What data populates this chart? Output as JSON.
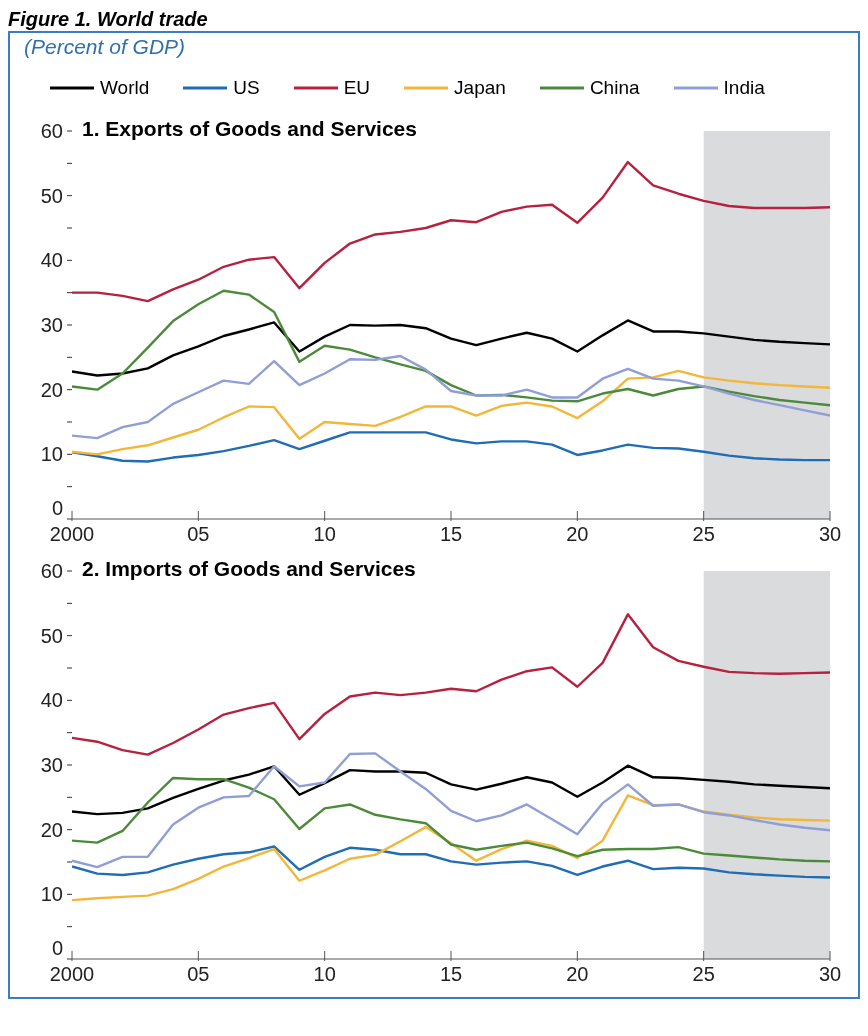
{
  "chart_data": [
    {
      "type": "line",
      "title": "1. Exports of Goods and Services",
      "ylabel": "(Percent of GDP)",
      "annotations": [
        "Figure 1. World trade"
      ],
      "x": [
        2000,
        2001,
        2002,
        2003,
        2004,
        2005,
        2006,
        2007,
        2008,
        2009,
        2010,
        2011,
        2012,
        2013,
        2014,
        2015,
        2016,
        2017,
        2018,
        2019,
        2020,
        2021,
        2022,
        2023,
        2024,
        2025,
        2026,
        2027,
        2028,
        2029,
        2030
      ],
      "series": [
        {
          "name": "World",
          "color": "#000000",
          "values": [
            22.8,
            22.2,
            22.5,
            23.3,
            25.3,
            26.7,
            28.3,
            29.3,
            30.4,
            25.9,
            28.2,
            30.0,
            29.9,
            30.0,
            29.5,
            27.9,
            26.9,
            27.9,
            28.8,
            27.9,
            25.9,
            28.4,
            30.7,
            29.0,
            29.0,
            28.7,
            28.2,
            27.7,
            27.4,
            27.2,
            27.0
          ]
        },
        {
          "name": "US",
          "color": "#1f6db5",
          "values": [
            10.3,
            9.7,
            9.0,
            8.9,
            9.5,
            9.9,
            10.5,
            11.3,
            12.2,
            10.8,
            12.1,
            13.4,
            13.4,
            13.4,
            13.4,
            12.3,
            11.7,
            12.0,
            12.0,
            11.5,
            9.9,
            10.6,
            11.5,
            11.0,
            10.9,
            10.4,
            9.8,
            9.4,
            9.2,
            9.1,
            9.1
          ]
        },
        {
          "name": "EU",
          "color": "#b5213f",
          "values": [
            35.0,
            35.0,
            34.5,
            33.7,
            35.5,
            37.0,
            39.0,
            40.1,
            40.5,
            35.7,
            39.6,
            42.6,
            44.0,
            44.4,
            45.0,
            46.2,
            45.9,
            47.5,
            48.3,
            48.6,
            45.8,
            49.7,
            55.2,
            51.6,
            50.3,
            49.2,
            48.4,
            48.1,
            48.1,
            48.1,
            48.2
          ]
        },
        {
          "name": "Japan",
          "color": "#f2b63a",
          "values": [
            10.4,
            10.0,
            10.8,
            11.4,
            12.6,
            13.8,
            15.7,
            17.4,
            17.3,
            12.4,
            15.0,
            14.7,
            14.4,
            15.8,
            17.4,
            17.4,
            16.0,
            17.5,
            18.0,
            17.4,
            15.6,
            18.2,
            21.7,
            21.9,
            22.9,
            21.9,
            21.4,
            21.0,
            20.7,
            20.5,
            20.3
          ]
        },
        {
          "name": "China",
          "color": "#4b8a3a",
          "values": [
            20.5,
            20.0,
            22.5,
            26.5,
            30.6,
            33.2,
            35.3,
            34.7,
            32.0,
            24.3,
            26.8,
            26.2,
            25.0,
            23.9,
            22.9,
            20.7,
            19.1,
            19.2,
            18.8,
            18.3,
            18.2,
            19.4,
            20.1,
            19.1,
            20.1,
            20.5,
            19.7,
            19.0,
            18.4,
            18.0,
            17.6
          ]
        },
        {
          "name": "India",
          "color": "#8f9fd6",
          "values": [
            12.9,
            12.5,
            14.2,
            15.0,
            17.8,
            19.6,
            21.4,
            20.9,
            24.4,
            20.7,
            22.5,
            24.7,
            24.6,
            25.2,
            23.1,
            19.8,
            19.1,
            19.1,
            20.0,
            18.8,
            18.8,
            21.7,
            23.2,
            21.7,
            21.4,
            20.5,
            19.4,
            18.4,
            17.6,
            16.8,
            16.0
          ]
        }
      ],
      "xlim": [
        2000,
        2030
      ],
      "xticks": [
        {
          "value": 2000,
          "label": "2000"
        },
        {
          "value": 2005,
          "label": "05"
        },
        {
          "value": 2010,
          "label": "10"
        },
        {
          "value": 2015,
          "label": "15"
        },
        {
          "value": 2020,
          "label": "20"
        },
        {
          "value": 2025,
          "label": "25"
        },
        {
          "value": 2030,
          "label": "30"
        }
      ],
      "ylim": [
        0,
        60
      ],
      "yticks": [
        0,
        {
          "value": 5,
          "label": null
        },
        10,
        {
          "value": 15,
          "label": null
        },
        20,
        {
          "value": 25,
          "label": null
        },
        30,
        {
          "value": 35,
          "label": null
        },
        40,
        {
          "value": 45,
          "label": null
        },
        50,
        {
          "value": 55,
          "label": null
        },
        60
      ],
      "bands": [
        {
          "axis": "x",
          "from": 2025,
          "to": 2030,
          "color": "#d9dbdd"
        }
      ],
      "grid": false,
      "legend": "top"
    },
    {
      "type": "line",
      "title": "2. Imports of Goods and Services",
      "x": [
        2000,
        2001,
        2002,
        2003,
        2004,
        2005,
        2006,
        2007,
        2008,
        2009,
        2010,
        2011,
        2012,
        2013,
        2014,
        2015,
        2016,
        2017,
        2018,
        2019,
        2020,
        2021,
        2022,
        2023,
        2024,
        2025,
        2026,
        2027,
        2028,
        2029,
        2030
      ],
      "series": [
        {
          "color": "#000000",
          "values": [
            22.8,
            22.4,
            22.6,
            23.3,
            24.9,
            26.3,
            27.6,
            28.5,
            29.8,
            25.4,
            27.2,
            29.2,
            29.0,
            29.0,
            28.8,
            27.0,
            26.2,
            27.1,
            28.1,
            27.3,
            25.1,
            27.3,
            29.9,
            28.1,
            28.0,
            27.7,
            27.4,
            27.0,
            26.8,
            26.6,
            26.4
          ]
        },
        {
          "color": "#1f6db5",
          "values": [
            14.3,
            13.2,
            13.0,
            13.4,
            14.6,
            15.5,
            16.2,
            16.5,
            17.4,
            13.8,
            15.8,
            17.2,
            16.9,
            16.2,
            16.2,
            15.1,
            14.6,
            14.9,
            15.1,
            14.4,
            13.0,
            14.3,
            15.2,
            13.9,
            14.1,
            14.0,
            13.4,
            13.1,
            12.9,
            12.7,
            12.6
          ]
        },
        {
          "color": "#b5213f",
          "values": [
            34.2,
            33.6,
            32.3,
            31.6,
            33.4,
            35.5,
            37.8,
            38.8,
            39.6,
            34.0,
            37.9,
            40.6,
            41.2,
            40.8,
            41.2,
            41.8,
            41.4,
            43.2,
            44.5,
            45.1,
            42.1,
            45.8,
            53.3,
            48.2,
            46.1,
            45.2,
            44.4,
            44.2,
            44.1,
            44.2,
            44.3
          ]
        },
        {
          "color": "#f2b63a",
          "values": [
            9.1,
            9.4,
            9.6,
            9.8,
            10.8,
            12.4,
            14.3,
            15.6,
            17.0,
            12.1,
            13.7,
            15.5,
            16.1,
            18.2,
            20.4,
            17.9,
            15.2,
            17.0,
            18.3,
            17.5,
            15.6,
            18.3,
            25.3,
            23.8,
            23.9,
            22.8,
            22.3,
            21.9,
            21.6,
            21.5,
            21.4
          ]
        },
        {
          "color": "#4b8a3a",
          "values": [
            18.3,
            18.0,
            19.8,
            24.2,
            28.0,
            27.8,
            27.8,
            26.5,
            24.7,
            20.1,
            23.3,
            23.9,
            22.3,
            21.6,
            21.0,
            17.7,
            16.9,
            17.5,
            18.0,
            17.1,
            15.9,
            16.9,
            17.0,
            17.0,
            17.3,
            16.3,
            16.0,
            15.7,
            15.4,
            15.2,
            15.1
          ]
        },
        {
          "color": "#8f9fd6",
          "values": [
            15.2,
            14.2,
            15.8,
            15.8,
            20.8,
            23.4,
            25.0,
            25.2,
            29.8,
            26.7,
            27.3,
            31.7,
            31.8,
            29.0,
            26.3,
            22.9,
            21.3,
            22.2,
            23.9,
            21.6,
            19.3,
            24.1,
            27.0,
            23.7,
            23.9,
            22.7,
            22.2,
            21.5,
            20.8,
            20.3,
            19.9
          ]
        }
      ],
      "xlim": [
        2000,
        2030
      ],
      "xticks": [
        {
          "value": 2000,
          "label": "2000"
        },
        {
          "value": 2005,
          "label": "05"
        },
        {
          "value": 2010,
          "label": "10"
        },
        {
          "value": 2015,
          "label": "15"
        },
        {
          "value": 2020,
          "label": "20"
        },
        {
          "value": 2025,
          "label": "25"
        },
        {
          "value": 2030,
          "label": "30"
        }
      ],
      "ylim": [
        0,
        60
      ],
      "yticks": [
        0,
        {
          "value": 5,
          "label": null
        },
        10,
        {
          "value": 15,
          "label": null
        },
        20,
        {
          "value": 25,
          "label": null
        },
        30,
        {
          "value": 35,
          "label": null
        },
        40,
        {
          "value": 45,
          "label": null
        },
        50,
        {
          "value": 55,
          "label": null
        },
        60
      ],
      "bands": [
        {
          "axis": "x",
          "from": 2025,
          "to": 2030,
          "color": "#d9dbdd"
        }
      ],
      "grid": false,
      "legend": false
    }
  ]
}
